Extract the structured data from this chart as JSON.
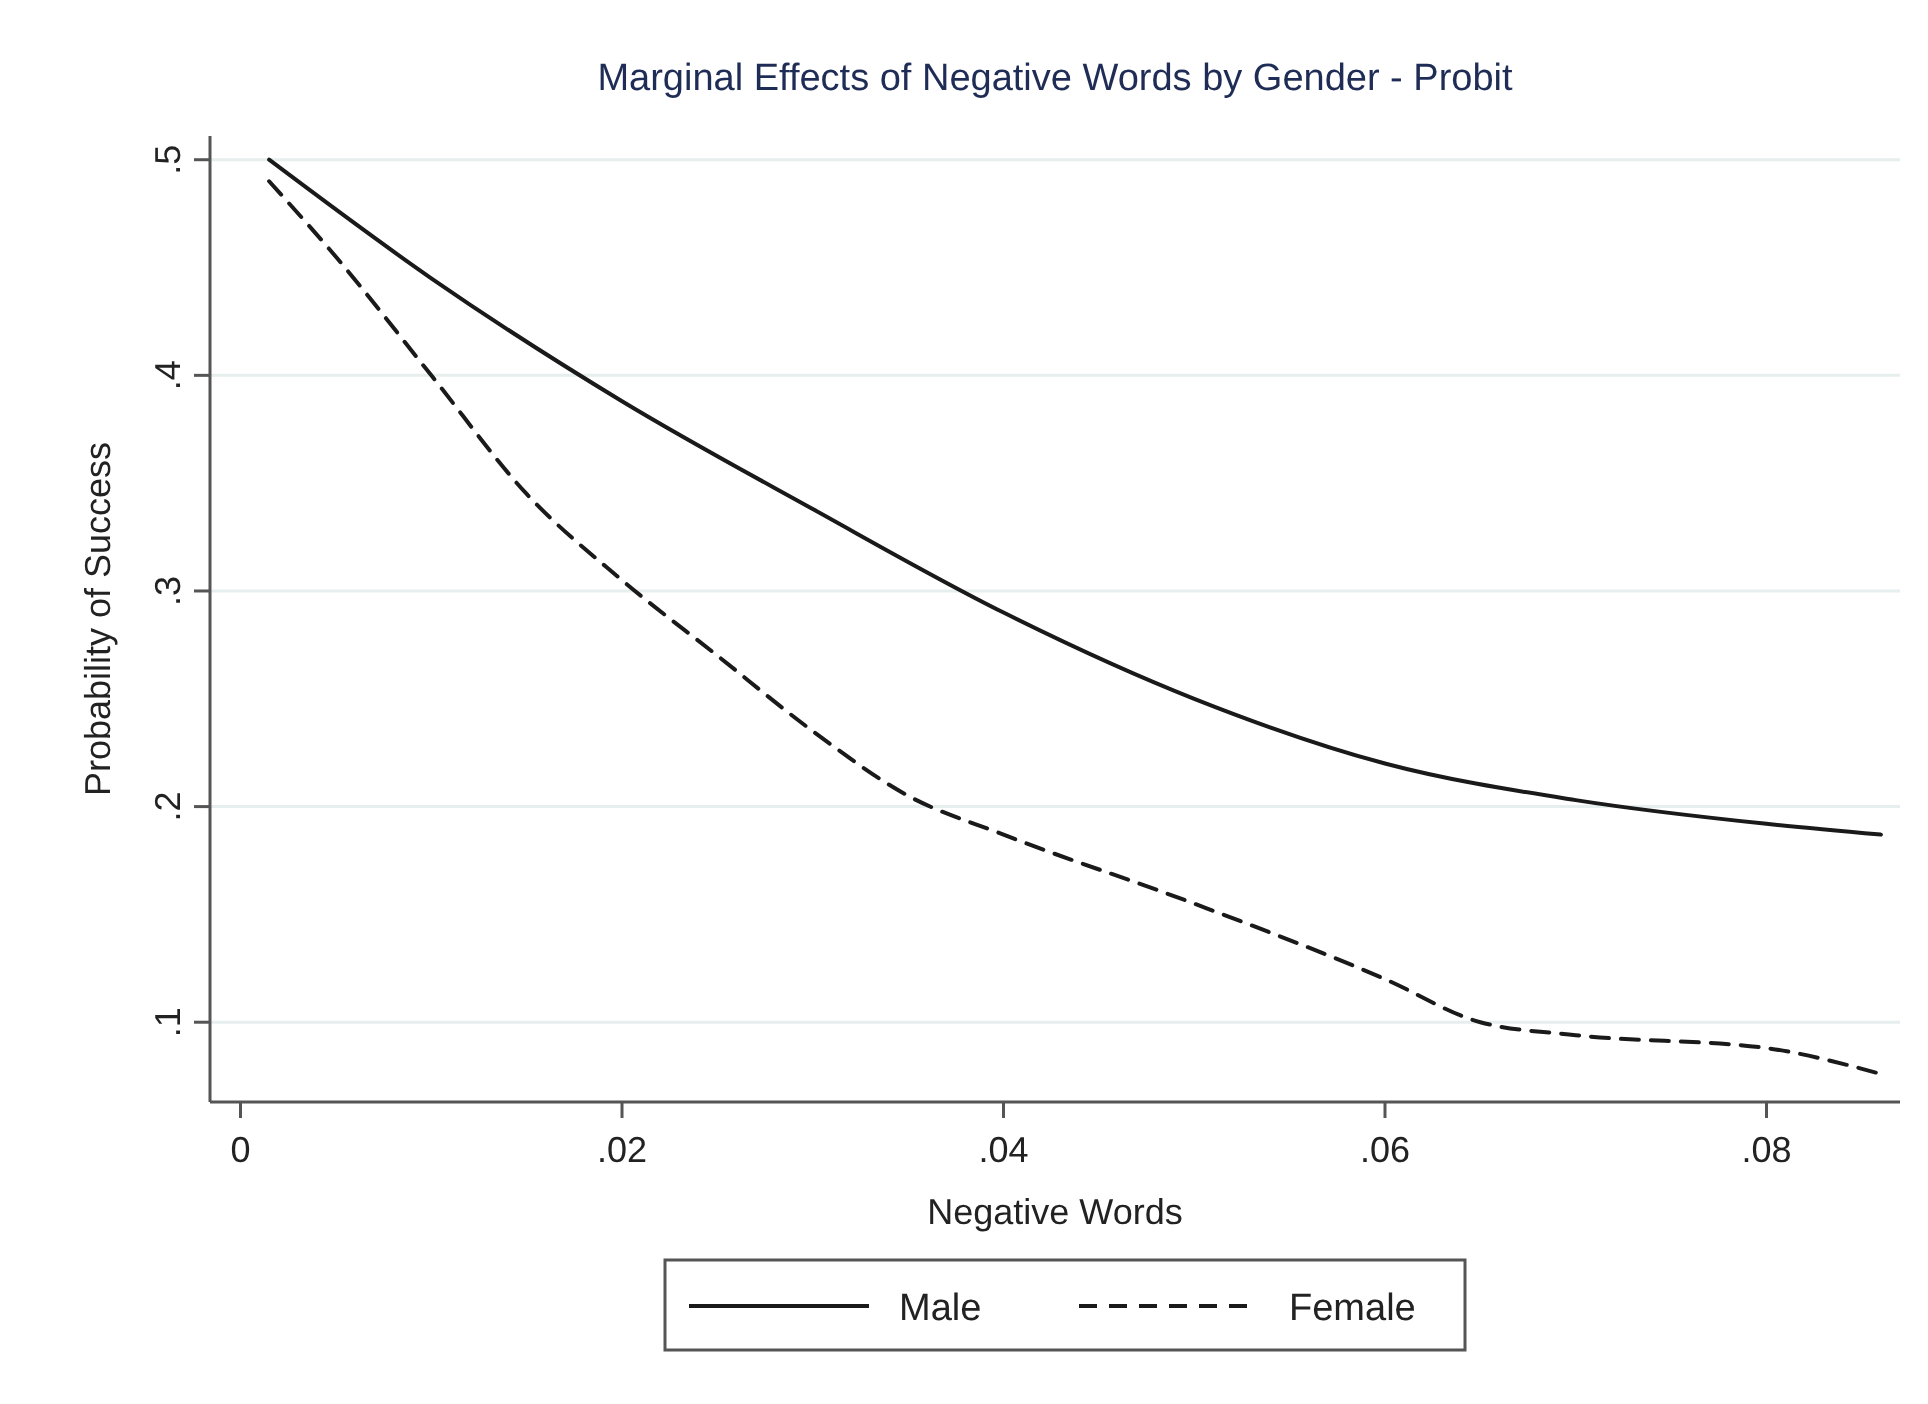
{
  "chart_data": {
    "type": "line",
    "title": "Marginal Effects of Negative Words by Gender - Probit",
    "xlabel": "Negative Words",
    "ylabel": "Probability of Success",
    "xlim": [
      -0.0016,
      0.087
    ],
    "ylim": [
      0.063,
      0.511
    ],
    "xticks": [
      {
        "value": 0,
        "label": "0"
      },
      {
        "value": 0.02,
        "label": ".02"
      },
      {
        "value": 0.04,
        "label": ".04"
      },
      {
        "value": 0.06,
        "label": ".06"
      },
      {
        "value": 0.08,
        "label": ".08"
      }
    ],
    "yticks": [
      {
        "value": 0.1,
        "label": ".1"
      },
      {
        "value": 0.2,
        "label": ".2"
      },
      {
        "value": 0.3,
        "label": ".3"
      },
      {
        "value": 0.4,
        "label": ".4"
      },
      {
        "value": 0.5,
        "label": ".5"
      }
    ],
    "grid": "y",
    "legend": "bottom",
    "series": [
      {
        "name": "Male",
        "color": "#1a1a1a",
        "line_style": "solid",
        "x": [
          0.0015,
          0.01,
          0.02,
          0.03,
          0.04,
          0.05,
          0.06,
          0.07,
          0.08,
          0.086
        ],
        "values": [
          0.5,
          0.445,
          0.388,
          0.338,
          0.29,
          0.25,
          0.22,
          0.203,
          0.192,
          0.187
        ]
      },
      {
        "name": "Female",
        "color": "#1a1a1a",
        "line_style": "dashed",
        "x": [
          0.0015,
          0.005,
          0.01,
          0.015,
          0.02,
          0.025,
          0.03,
          0.035,
          0.04,
          0.05,
          0.06,
          0.065,
          0.07,
          0.08,
          0.086
        ],
        "values": [
          0.49,
          0.455,
          0.4,
          0.345,
          0.305,
          0.27,
          0.235,
          0.205,
          0.187,
          0.155,
          0.12,
          0.1,
          0.094,
          0.088,
          0.076
        ]
      }
    ]
  }
}
